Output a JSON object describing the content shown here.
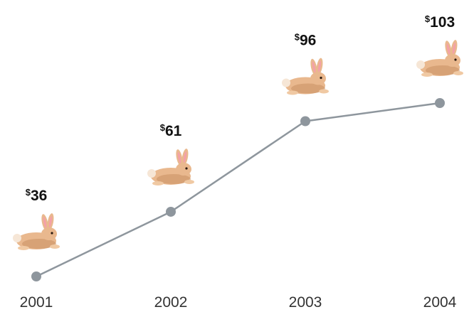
{
  "chart_data": {
    "type": "line",
    "title": "",
    "xlabel": "",
    "ylabel": "",
    "x": [
      "2001",
      "2002",
      "2003",
      "2004"
    ],
    "series": [
      {
        "values": [
          36,
          61,
          96,
          103
        ],
        "value_labels": [
          {
            "currency": "$",
            "amount": "36"
          },
          {
            "currency": "$",
            "amount": "61"
          },
          {
            "currency": "$",
            "amount": "96"
          },
          {
            "currency": "$",
            "amount": "103"
          }
        ]
      }
    ],
    "ylim": [
      36,
      103
    ],
    "grid": false,
    "legend": "none",
    "marker_icon": "rabbit-icon",
    "colors": {
      "line": "#8e969d",
      "marker": "#8e969d",
      "rabbit_body": "#e9b88e",
      "rabbit_shadow": "#c98f62",
      "rabbit_inner_ear": "#f4a0a8"
    }
  }
}
